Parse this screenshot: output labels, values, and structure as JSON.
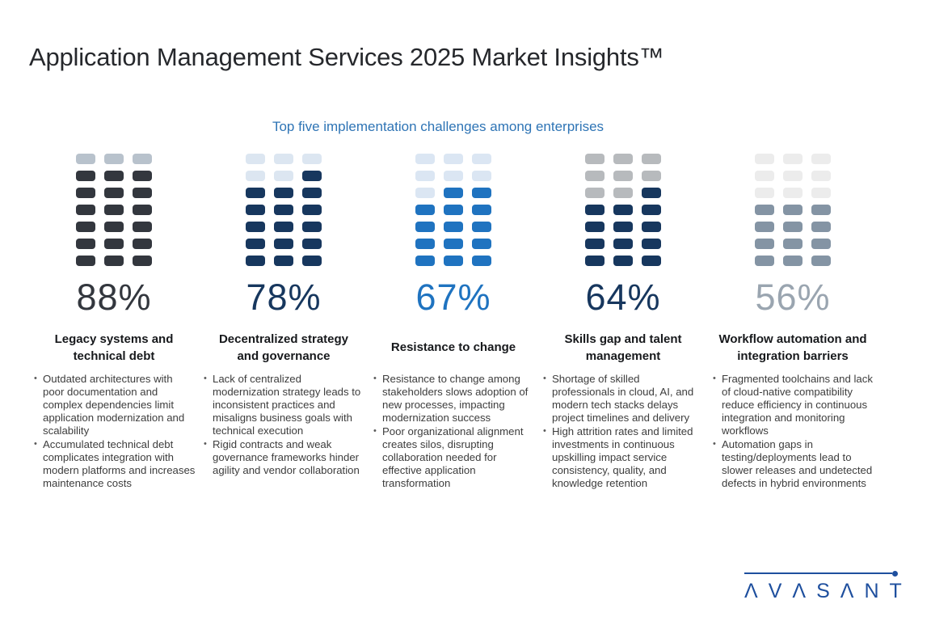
{
  "page": {
    "title": "Application Management Services 2025 Market Insights™",
    "subtitle": "Top five implementation challenges among enterprises",
    "title_color": "#26282c",
    "subtitle_color": "#2e74b5",
    "background": "#ffffff"
  },
  "chart_data": {
    "type": "waffle",
    "title": "Top five implementation challenges among enterprises",
    "unit": "%",
    "categories": [
      "Legacy systems and technical debt",
      "Decentralized strategy and governance",
      "Resistance to change",
      "Skills gap and talent management",
      "Workflow automation and integration barriers"
    ],
    "values": [
      88,
      78,
      67,
      64,
      56
    ],
    "waffle_grid": {
      "rows": 7,
      "cols": 3,
      "total_cells": 21,
      "fill_direction": "bottom-up"
    },
    "filled_cells_per_category": [
      18,
      16,
      14,
      13,
      12
    ],
    "legend": "none",
    "grid_lines": "off"
  },
  "columns": [
    {
      "pct": "88%",
      "value": 88,
      "filled": 18,
      "title": "Legacy systems and technical debt",
      "bullets": [
        "Outdated architectures with poor documentation and complex dependencies limit application modernization and scalability",
        "Accumulated technical debt complicates integration with modern platforms and increases maintenance costs"
      ],
      "colors": {
        "filled": "#33373e",
        "empty": "#b8c2cc",
        "pct": "#33373e"
      }
    },
    {
      "pct": "78%",
      "value": 78,
      "filled": 16,
      "title": "Decentralized strategy and governance",
      "bullets": [
        "Lack of centralized modernization strategy leads to inconsistent practices and misaligns business goals with technical execution",
        "Rigid contracts and weak governance frameworks hinder agility and vendor collaboration"
      ],
      "colors": {
        "filled": "#17375e",
        "empty": "#dce6f1",
        "pct": "#17375e"
      }
    },
    {
      "pct": "67%",
      "value": 67,
      "filled": 14,
      "title": "Resistance to change",
      "bullets": [
        "Resistance to change among stakeholders slows adoption of new processes, impacting modernization success",
        "Poor organizational alignment creates silos, disrupting collaboration needed for effective application transformation"
      ],
      "colors": {
        "filled": "#1f73c0",
        "empty": "#dbe6f3",
        "pct": "#1f73c0"
      }
    },
    {
      "pct": "64%",
      "value": 64,
      "filled": 13,
      "title": "Skills gap and talent management",
      "bullets": [
        "Shortage of skilled professionals in cloud, AI, and modern tech stacks delays project timelines and delivery",
        "High attrition rates and limited investments in continuous upskilling impact service consistency, quality, and knowledge retention"
      ],
      "colors": {
        "filled": "#17375e",
        "empty": "#b7babd",
        "pct": "#17375e"
      }
    },
    {
      "pct": "56%",
      "value": 56,
      "filled": 12,
      "title": "Workflow automation and integration barriers",
      "bullets": [
        "Fragmented toolchains and lack of cloud-native compatibility reduce efficiency in continuous integration and monitoring workflows",
        "Automation gaps in testing/deployments lead to slower releases and undetected defects in hybrid environments"
      ],
      "colors": {
        "filled": "#8494a4",
        "empty": "#ececec",
        "pct": "#9aa5b0"
      }
    }
  ],
  "logo": {
    "text": "AVASANT",
    "display": "ΛVΛSΛNT",
    "color": "#1e4f9e"
  }
}
